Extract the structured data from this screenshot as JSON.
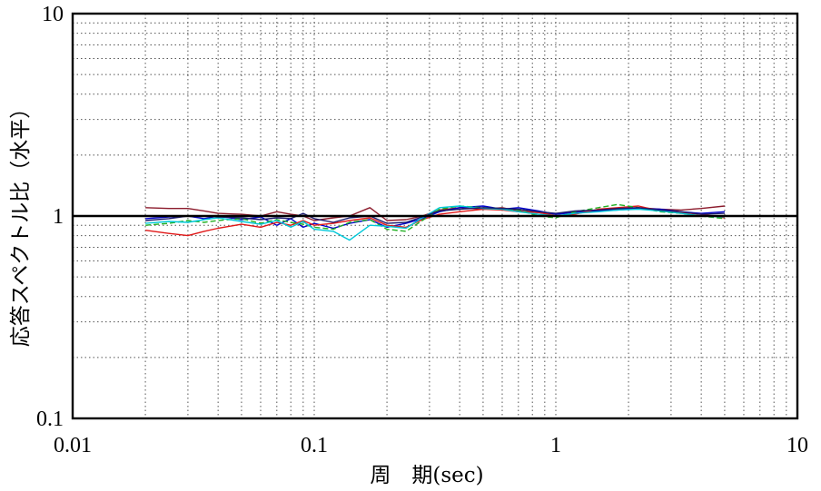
{
  "chart_data": {
    "type": "line",
    "xlabel": "周　期(sec)",
    "ylabel": "応答スペクトル比（水平）",
    "xscale": "log",
    "yscale": "log",
    "xlim": [
      0.01,
      10
    ],
    "ylim": [
      0.1,
      10
    ],
    "x_ticks": [
      "0.01",
      "0.1",
      "1",
      "10"
    ],
    "y_ticks": [
      "0.1",
      "1",
      "10"
    ],
    "grid": "on (dotted, major and minor)",
    "reference_line": 1,
    "legend": "none",
    "x": [
      0.02,
      0.025,
      0.03,
      0.035,
      0.04,
      0.05,
      0.06,
      0.07,
      0.08,
      0.09,
      0.1,
      0.12,
      0.14,
      0.17,
      0.2,
      0.24,
      0.28,
      0.33,
      0.4,
      0.5,
      0.6,
      0.7,
      0.85,
      1.0,
      1.2,
      1.5,
      1.8,
      2.2,
      2.7,
      3.3,
      4.0,
      5.0
    ],
    "series": [
      {
        "color": "#8b1a2b",
        "values": [
          1.1,
          1.09,
          1.09,
          1.06,
          1.03,
          1.02,
          1.0,
          1.05,
          1.02,
          1.0,
          0.95,
          0.98,
          1.0,
          1.1,
          0.95,
          0.96,
          1.0,
          1.07,
          1.1,
          1.08,
          1.1,
          1.06,
          1.04,
          1.02,
          1.05,
          1.06,
          1.08,
          1.1,
          1.08,
          1.07,
          1.09,
          1.12
        ]
      },
      {
        "color": "#0000cc",
        "values": [
          0.97,
          0.99,
          1.0,
          0.97,
          1.0,
          0.96,
          0.99,
          0.9,
          0.97,
          0.88,
          0.92,
          0.87,
          0.92,
          0.96,
          0.88,
          0.92,
          0.97,
          1.05,
          1.1,
          1.12,
          1.08,
          1.1,
          1.06,
          1.02,
          1.04,
          1.06,
          1.07,
          1.09,
          1.08,
          1.05,
          1.03,
          1.05
        ]
      },
      {
        "color": "#e01818",
        "values": [
          0.85,
          0.82,
          0.8,
          0.84,
          0.87,
          0.91,
          0.88,
          0.93,
          0.9,
          0.95,
          0.9,
          0.92,
          0.95,
          0.98,
          0.9,
          0.88,
          0.96,
          1.02,
          1.05,
          1.08,
          1.07,
          1.05,
          1.04,
          1.0,
          1.02,
          1.08,
          1.1,
          1.12,
          1.06,
          1.04,
          1.02,
          0.98
        ]
      },
      {
        "color": "#22b022",
        "values": [
          0.9,
          0.92,
          0.95,
          0.93,
          0.95,
          0.97,
          0.92,
          0.96,
          0.93,
          0.91,
          0.88,
          0.86,
          0.93,
          0.96,
          0.86,
          0.84,
          0.95,
          1.08,
          1.12,
          1.1,
          1.09,
          1.07,
          1.0,
          0.98,
          1.05,
          1.1,
          1.14,
          1.1,
          1.05,
          1.03,
          1.0,
          0.97
        ]
      },
      {
        "color": "#00c8d8",
        "values": [
          0.92,
          0.94,
          0.93,
          0.96,
          0.98,
          0.94,
          0.91,
          0.95,
          0.88,
          0.94,
          0.86,
          0.84,
          0.76,
          0.9,
          0.89,
          0.87,
          0.98,
          1.1,
          1.12,
          1.09,
          1.08,
          1.05,
          1.02,
          1.0,
          1.03,
          1.05,
          1.07,
          1.08,
          1.06,
          1.03,
          1.0,
          0.99
        ]
      },
      {
        "color": "#1a1a6e",
        "values": [
          0.95,
          0.97,
          1.0,
          1.0,
          0.99,
          0.98,
          0.96,
          0.98,
          0.97,
          1.03,
          0.97,
          0.93,
          0.98,
          1.0,
          0.92,
          0.93,
          0.99,
          1.06,
          1.08,
          1.1,
          1.09,
          1.08,
          1.05,
          1.03,
          1.06,
          1.07,
          1.09,
          1.1,
          1.07,
          1.05,
          1.02,
          1.03
        ]
      }
    ]
  }
}
